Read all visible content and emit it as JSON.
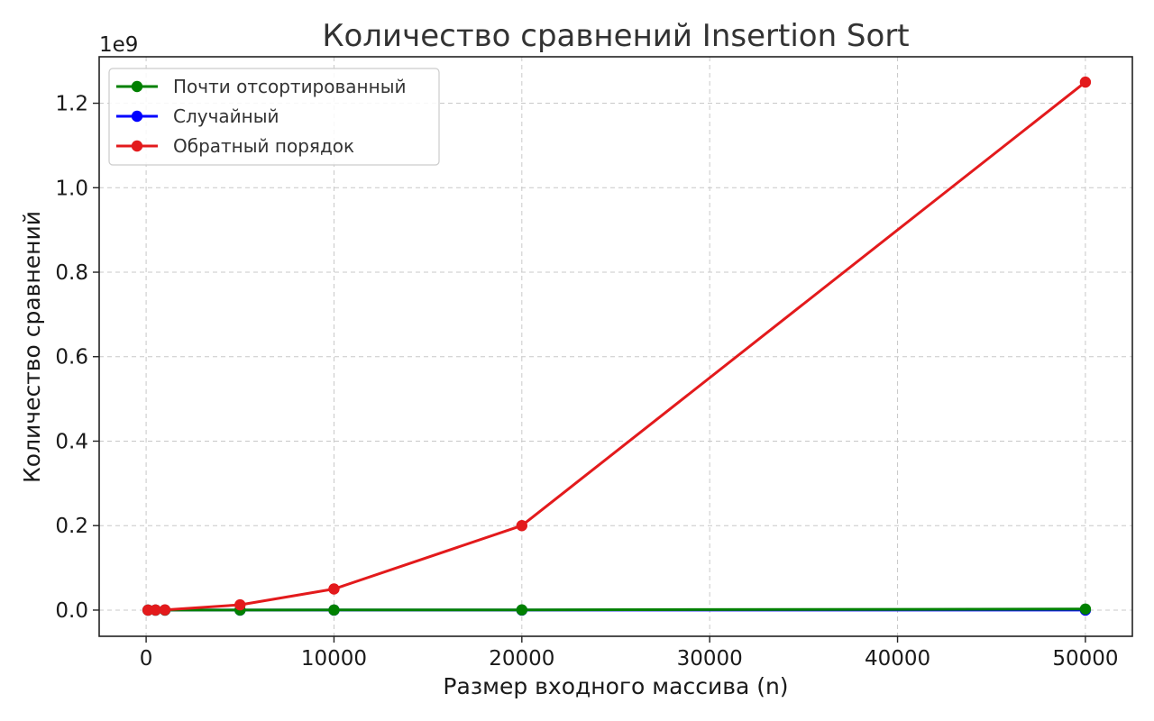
{
  "chart_data": {
    "type": "line",
    "title": "Количество сравнений Insertion Sort",
    "xlabel": "Размер входного массива (n)",
    "ylabel": "Количество сравнений",
    "y_offset_text": "1e9",
    "xlim": [
      -2500,
      52500
    ],
    "ylim": [
      -0.062,
      1.31
    ],
    "x_ticks": [
      0,
      10000,
      20000,
      30000,
      40000,
      50000
    ],
    "x_tick_labels": [
      "0",
      "10000",
      "20000",
      "30000",
      "40000",
      "50000"
    ],
    "y_ticks": [
      0.0,
      0.2,
      0.4,
      0.6,
      0.8,
      1.0,
      1.2
    ],
    "y_tick_labels": [
      "0.0",
      "0.2",
      "0.4",
      "0.6",
      "0.8",
      "1.0",
      "1.2"
    ],
    "grid": true,
    "legend_position": "top-left",
    "x": [
      100,
      500,
      1000,
      5000,
      10000,
      20000,
      50000
    ],
    "series": [
      {
        "name": "Почти отсортированный",
        "color": "#008000",
        "values": [
          0.0,
          0.0,
          0.0,
          0.0001,
          0.0002,
          0.0005,
          0.0025
        ]
      },
      {
        "name": "Случайный",
        "color": "#0000ff",
        "values": [
          0.0,
          0.0,
          0.0,
          0.0,
          0.0,
          0.0,
          0.0
        ]
      },
      {
        "name": "Обратный порядок",
        "color": "#e31a1c",
        "values": [
          5e-06,
          0.000125,
          0.0005,
          0.0125,
          0.05,
          0.2,
          1.25
        ]
      }
    ]
  }
}
